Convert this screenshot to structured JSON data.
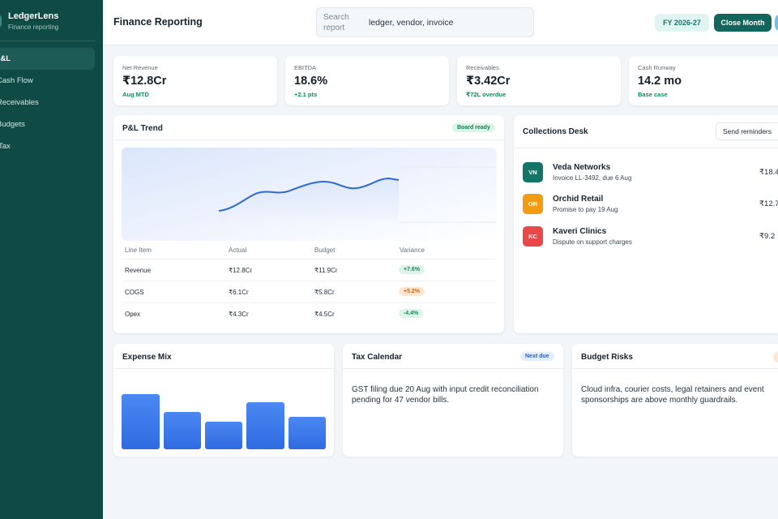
{
  "brand": {
    "name": "LedgerLens",
    "subtitle": "Finance reporting"
  },
  "sidebar": {
    "items": [
      {
        "label": "P&L",
        "active": true
      },
      {
        "label": "Cash Flow",
        "active": false
      },
      {
        "label": "Receivables",
        "active": false
      },
      {
        "label": "Budgets",
        "active": false
      },
      {
        "label": "Tax",
        "active": false
      }
    ]
  },
  "header": {
    "title": "Finance Reporting",
    "search_label": "Search report",
    "search_value": "ledger, vendor, invoice",
    "fy_label": "FY 2026-27",
    "close_month_label": "Close Month"
  },
  "kpis": [
    {
      "label": "Net Revenue",
      "value": "₹12.8Cr",
      "note": "Aug MTD"
    },
    {
      "label": "EBITDA",
      "value": "18.6%",
      "note": "+2.1 pts"
    },
    {
      "label": "Receivables",
      "value": "₹3.42Cr",
      "note": "₹72L overdue"
    },
    {
      "label": "Cash Runway",
      "value": "14.2 mo",
      "note": "Base case"
    }
  ],
  "pl_trend": {
    "title": "P&L Trend",
    "badge": "Board ready",
    "columns": [
      "Line Item",
      "Actual",
      "Budget",
      "Variance"
    ],
    "rows": [
      {
        "item": "Revenue",
        "actual": "₹12.8Cr",
        "budget": "₹11.9Cr",
        "variance": "+7.6%"
      },
      {
        "item": "COGS",
        "actual": "₹6.1Cr",
        "budget": "₹5.8Cr",
        "variance": "+5.2%"
      },
      {
        "item": "Opex",
        "actual": "₹4.3Cr",
        "budget": "₹4.5Cr",
        "variance": "-4.4%"
      }
    ]
  },
  "collections": {
    "title": "Collections Desk",
    "action_label": "Send reminders",
    "items": [
      {
        "initials": "VN",
        "name": "Veda Networks",
        "detail": "Invoice LL-3492, due 6 Aug",
        "amount": "₹18.4",
        "color": "#137567"
      },
      {
        "initials": "OR",
        "name": "Orchid Retail",
        "detail": "Promise to pay 19 Aug",
        "amount": "₹12.7",
        "color": "#f39c12"
      },
      {
        "initials": "KC",
        "name": "Kaveri Clinics",
        "detail": "Dispute on support charges",
        "amount": "₹9.2",
        "color": "#e94848"
      }
    ]
  },
  "expense_mix": {
    "title": "Expense Mix"
  },
  "tax_calendar": {
    "title": "Tax Calendar",
    "badge": "Next due",
    "body": "GST filing due 20 Aug with input credit reconciliation pending for 47 vendor bills."
  },
  "budget_risks": {
    "title": "Budget Risks",
    "body": "Cloud infra, courier costs, legal retainers and event sponsorships are above monthly guardrails."
  },
  "colors": {
    "sidebar": "#0f4a44",
    "accent": "#13665d",
    "chart_line": "#2f6bd0",
    "bar": "#3f7df0"
  }
}
